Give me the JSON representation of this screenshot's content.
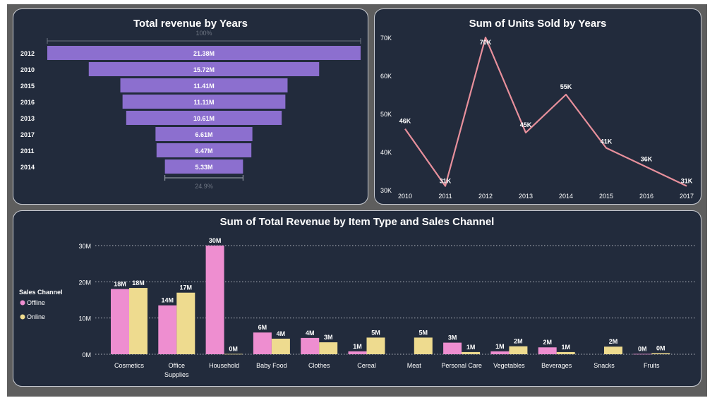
{
  "chart_data": [
    {
      "type": "bar",
      "subtype": "funnel",
      "title": "Total revenue by Years",
      "categories": [
        "2012",
        "2010",
        "2015",
        "2016",
        "2013",
        "2017",
        "2011",
        "2014"
      ],
      "values": [
        21.38,
        15.72,
        11.41,
        11.11,
        10.61,
        6.61,
        6.47,
        5.33
      ],
      "value_labels": [
        "21.38M",
        "15.72M",
        "11.41M",
        "11.11M",
        "10.61M",
        "6.61M",
        "6.47M",
        "5.33M"
      ],
      "unit": "M",
      "top_percent_label": "100%",
      "bottom_percent_label": "24.9%",
      "color": "#8c6fcf"
    },
    {
      "type": "line",
      "title": "Sum of Units Sold by Years",
      "x": [
        2010,
        2011,
        2012,
        2013,
        2014,
        2015,
        2016,
        2017
      ],
      "y": [
        46000,
        31000,
        70000,
        45000,
        55000,
        41000,
        36000,
        31000
      ],
      "point_labels": [
        "46K",
        "31K",
        "70K",
        "45K",
        "55K",
        "41K",
        "36K",
        "31K"
      ],
      "yticks": [
        "30K",
        "40K",
        "50K",
        "60K",
        "70K"
      ],
      "ytick_values": [
        30000,
        40000,
        50000,
        60000,
        70000
      ],
      "ylim": [
        30000,
        70000
      ],
      "color": "#e8909c"
    },
    {
      "type": "bar",
      "title": "Sum of Total Revenue by Item Type and Sales Channel",
      "categories": [
        "Cosmetics",
        "Office Supplies",
        "Household",
        "Baby Food",
        "Clothes",
        "Cereal",
        "Meat",
        "Personal Care",
        "Vegetables",
        "Beverages",
        "Snacks",
        "Fruits"
      ],
      "category_lines": [
        [
          "Cosmetics"
        ],
        [
          "Office",
          "Supplies"
        ],
        [
          "Household"
        ],
        [
          "Baby Food"
        ],
        [
          "Clothes"
        ],
        [
          "Cereal"
        ],
        [
          "Meat"
        ],
        [
          "Personal Care"
        ],
        [
          "Vegetables"
        ],
        [
          "Beverages"
        ],
        [
          "Snacks"
        ],
        [
          "Fruits"
        ]
      ],
      "series": [
        {
          "name": "Offline",
          "color": "#ee8ed0",
          "values": [
            18,
            13.5,
            30,
            6,
            4.5,
            0.8,
            null,
            3.2,
            0.8,
            1.9,
            null,
            0.1
          ],
          "labels": [
            "18M",
            "14M",
            "30M",
            "6M",
            "4M",
            "1M",
            "",
            "3M",
            "1M",
            "2M",
            "",
            "0M"
          ]
        },
        {
          "name": "Online",
          "color": "#eedb8f",
          "values": [
            18.3,
            17,
            0.1,
            4.3,
            3.3,
            4.6,
            4.6,
            0.6,
            2.2,
            0.6,
            2.1,
            0.3
          ],
          "labels": [
            "18M",
            "17M",
            "0M",
            "4M",
            "3M",
            "5M",
            "5M",
            "1M",
            "2M",
            "1M",
            "2M",
            "0M"
          ]
        }
      ],
      "yticks": [
        "0M",
        "10M",
        "20M",
        "30M"
      ],
      "ytick_values": [
        0,
        10,
        20,
        30
      ],
      "ylim": [
        0,
        30
      ],
      "legend_title": "Sales Channel",
      "legend_position": "left",
      "grid": true
    }
  ]
}
